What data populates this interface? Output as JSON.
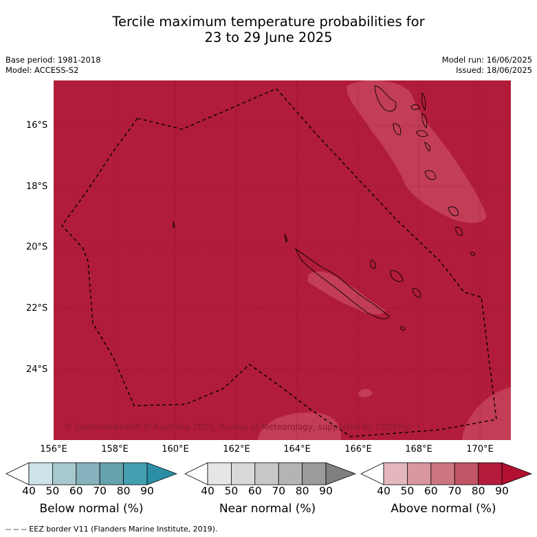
{
  "title_line1": "Tercile maximum temperature probabilities for",
  "title_line2": "23 to 29 June 2025",
  "meta_left": {
    "base_period": "Base period: 1981-2018",
    "model": "Model: ACCESS-S2"
  },
  "meta_right": {
    "model_run": "Model run: 16/06/2025",
    "issued": "Issued: 18/06/2025"
  },
  "lat_ticks": [
    "16°S",
    "18°S",
    "20°S",
    "22°S",
    "24°S"
  ],
  "lon_ticks": [
    "156°E",
    "158°E",
    "160°E",
    "162°E",
    "164°E",
    "166°E",
    "168°E",
    "170°E"
  ],
  "copyright": "© Commonwealth of Australia 2025, Bureau of Meteorology, supported by COSPPac",
  "colorbars": [
    {
      "label": "Below normal (%)",
      "ticks": [
        "40",
        "50",
        "60",
        "70",
        "80",
        "90"
      ],
      "colors": [
        "#ffffff",
        "#cde3e8",
        "#a6c8ce",
        "#85b2bc",
        "#66a2ae",
        "#44a0b0",
        "#2a8fa6"
      ]
    },
    {
      "label": "Near normal (%)",
      "ticks": [
        "40",
        "50",
        "60",
        "70",
        "80",
        "90"
      ],
      "colors": [
        "#ffffff",
        "#e6e6e6",
        "#d9d9d9",
        "#c8c8c8",
        "#b4b4b4",
        "#9b9b9b",
        "#808080"
      ]
    },
    {
      "label": "Above normal (%)",
      "ticks": [
        "40",
        "50",
        "60",
        "70",
        "80",
        "90"
      ],
      "colors": [
        "#ffffff",
        "#e4b6be",
        "#d8969e",
        "#cc7780",
        "#c05565",
        "#b31d3b",
        "#b11030"
      ]
    }
  ],
  "footer": "--  --  -- EEZ border V11 (Flanders Marine Institute, 2019).",
  "colors": {
    "map_fill": "#b11c3a",
    "lighter_fill": "#c33d57",
    "lightest_fill": "#d28090"
  }
}
